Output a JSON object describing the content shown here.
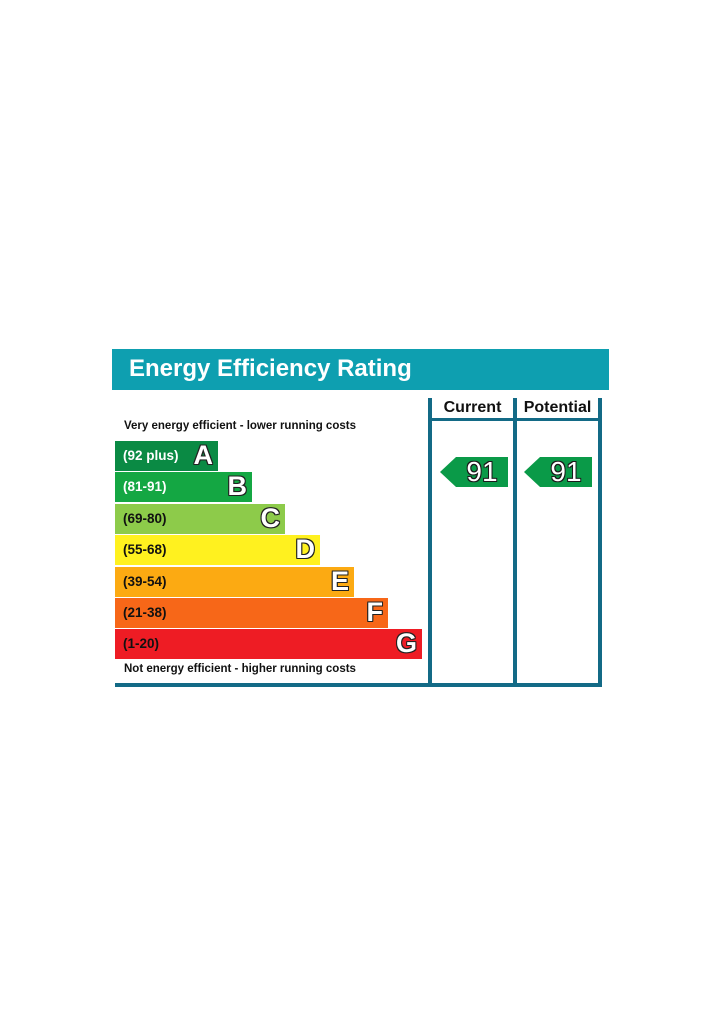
{
  "title": "Energy Efficiency Rating",
  "columns": {
    "current": "Current",
    "potential": "Potential"
  },
  "top_note": "Very energy efficient - lower running costs",
  "bottom_note": "Not energy efficient - higher running costs",
  "colors": {
    "header": "#0e9fb0",
    "frame": "#136a86",
    "arrow": "#0a9a48"
  },
  "chart_data": {
    "type": "bar",
    "title": "Energy Efficiency Rating",
    "bands": [
      {
        "range": "(92 plus)",
        "letter": "A",
        "color": "#0a8a44",
        "text_color": "#ffffff"
      },
      {
        "range": "(81-91)",
        "letter": "B",
        "color": "#14a743",
        "text_color": "#ffffff"
      },
      {
        "range": "(69-80)",
        "letter": "C",
        "color": "#8dcb4a",
        "text_color": "#111111"
      },
      {
        "range": "(55-68)",
        "letter": "D",
        "color": "#fff11f",
        "text_color": "#111111"
      },
      {
        "range": "(39-54)",
        "letter": "E",
        "color": "#fcaa12",
        "text_color": "#111111"
      },
      {
        "range": "(21-38)",
        "letter": "F",
        "color": "#f76718",
        "text_color": "#111111"
      },
      {
        "range": "(1-20)",
        "letter": "G",
        "color": "#ee1c24",
        "text_color": "#111111"
      }
    ],
    "current": 91,
    "potential": 91,
    "current_band": "B",
    "potential_band": "B"
  }
}
